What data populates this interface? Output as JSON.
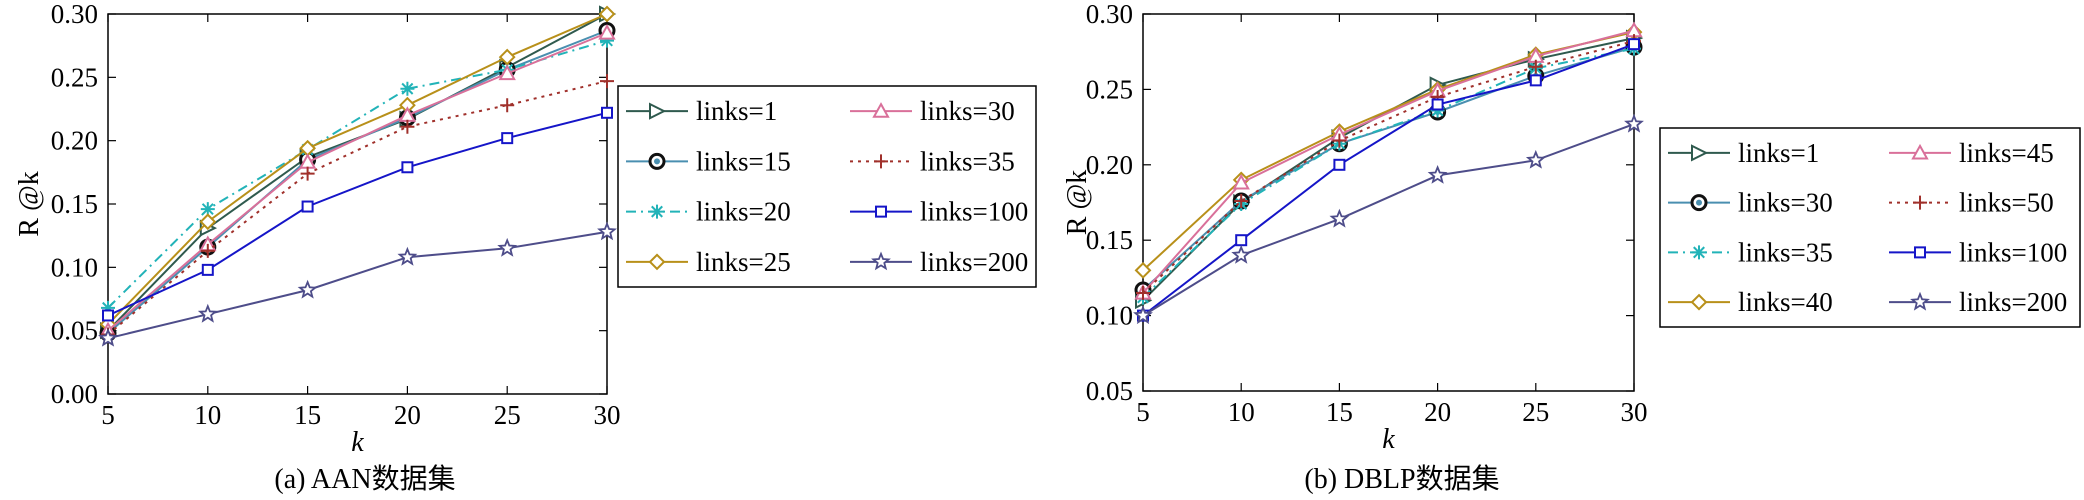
{
  "captions": [
    "(a) AAN数据集",
    "(b) DBLP数据集"
  ],
  "chart_data": [
    {
      "type": "line",
      "title": "",
      "xlabel": "k",
      "ylabel": "R @k",
      "x": [
        5,
        10,
        15,
        20,
        25,
        30
      ],
      "xlim": [
        5,
        30
      ],
      "ylim": [
        0.0,
        0.3
      ],
      "yticks": [
        "0.00",
        "0.05",
        "0.10",
        "0.15",
        "0.20",
        "0.25",
        "0.30"
      ],
      "xticks": [
        "5",
        "10",
        "15",
        "20",
        "25",
        "30"
      ],
      "grid": false,
      "legend_position": "right",
      "series": [
        {
          "name": "links=1",
          "color": "#2f5a4e",
          "dash": "solid",
          "marker": "triangle-right",
          "values": [
            0.05,
            0.131,
            0.187,
            0.217,
            0.258,
            0.3
          ]
        },
        {
          "name": "links=15",
          "color": "#4a8fb0",
          "dash": "solid",
          "marker": "circle-bold",
          "values": [
            0.048,
            0.116,
            0.185,
            0.218,
            0.256,
            0.287
          ]
        },
        {
          "name": "links=20",
          "color": "#22b3b8",
          "dash": "dashdot",
          "marker": "asterisk",
          "values": [
            0.068,
            0.146,
            0.193,
            0.241,
            0.256,
            0.279
          ]
        },
        {
          "name": "links=25",
          "color": "#b8901a",
          "dash": "solid",
          "marker": "diamond",
          "values": [
            0.055,
            0.136,
            0.194,
            0.228,
            0.266,
            0.3
          ]
        },
        {
          "name": "links=30",
          "color": "#d9709a",
          "dash": "solid",
          "marker": "triangle-up",
          "values": [
            0.05,
            0.118,
            0.183,
            0.22,
            0.253,
            0.285
          ]
        },
        {
          "name": "links=35",
          "color": "#a0302b",
          "dash": "dotted",
          "marker": "plus",
          "values": [
            0.047,
            0.113,
            0.174,
            0.211,
            0.228,
            0.247
          ]
        },
        {
          "name": "links=100",
          "color": "#1515c8",
          "dash": "solid",
          "marker": "square",
          "values": [
            0.062,
            0.098,
            0.148,
            0.179,
            0.202,
            0.222
          ]
        },
        {
          "name": "links=200",
          "color": "#4e4d8a",
          "dash": "solid",
          "marker": "star",
          "values": [
            0.044,
            0.063,
            0.082,
            0.108,
            0.115,
            0.128
          ]
        }
      ]
    },
    {
      "type": "line",
      "title": "",
      "xlabel": "k",
      "ylabel": "R @k",
      "x": [
        5,
        10,
        15,
        20,
        25,
        30
      ],
      "xlim": [
        5,
        30
      ],
      "ylim": [
        0.05,
        0.3
      ],
      "yticks": [
        "0.05",
        "0.10",
        "0.15",
        "0.20",
        "0.25",
        "0.30"
      ],
      "xticks": [
        "5",
        "10",
        "15",
        "20",
        "25",
        "30"
      ],
      "grid": false,
      "legend_position": "right",
      "series": [
        {
          "name": "links=1",
          "color": "#2f5a4e",
          "dash": "solid",
          "marker": "triangle-right",
          "values": [
            0.11,
            0.175,
            0.218,
            0.253,
            0.27,
            0.284
          ]
        },
        {
          "name": "links=30",
          "color": "#4a8fb0",
          "dash": "solid",
          "marker": "circle-bold",
          "values": [
            0.117,
            0.176,
            0.214,
            0.235,
            0.259,
            0.278
          ]
        },
        {
          "name": "links=35",
          "color": "#22b3b8",
          "dash": "dashdot",
          "marker": "asterisk",
          "values": [
            0.112,
            0.174,
            0.214,
            0.236,
            0.264,
            0.277
          ]
        },
        {
          "name": "links=40",
          "color": "#b8901a",
          "dash": "solid",
          "marker": "diamond",
          "values": [
            0.13,
            0.19,
            0.222,
            0.25,
            0.273,
            0.288
          ]
        },
        {
          "name": "links=45",
          "color": "#d9709a",
          "dash": "solid",
          "marker": "triangle-up",
          "values": [
            0.115,
            0.188,
            0.22,
            0.249,
            0.272,
            0.289
          ]
        },
        {
          "name": "links=50",
          "color": "#a0302b",
          "dash": "dotted",
          "marker": "plus",
          "values": [
            0.115,
            0.176,
            0.216,
            0.245,
            0.265,
            0.282
          ]
        },
        {
          "name": "links=100",
          "color": "#1515c8",
          "dash": "solid",
          "marker": "square",
          "values": [
            0.1,
            0.15,
            0.2,
            0.24,
            0.256,
            0.28
          ]
        },
        {
          "name": "links=200",
          "color": "#4e4d8a",
          "dash": "solid",
          "marker": "star",
          "values": [
            0.1,
            0.14,
            0.164,
            0.193,
            0.203,
            0.227
          ]
        }
      ]
    }
  ]
}
